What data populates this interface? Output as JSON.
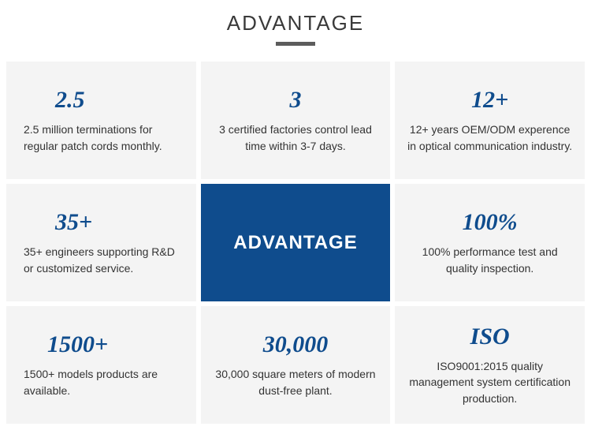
{
  "header": {
    "title": "ADVANTAGE",
    "title_color": "#3a3a3a",
    "underline_color": "#5c5c5c"
  },
  "grid": {
    "background_cell": "#f4f4f4",
    "center_background": "#0f4c8d",
    "stat_color": "#0f4c8d",
    "desc_color": "#333333",
    "stat_fontsize": 30,
    "desc_fontsize": 14,
    "cells": [
      {
        "stat": "2.5",
        "desc": "2.5 million terminations for regular patch cords monthly."
      },
      {
        "stat": "3",
        "desc": "3 certified factories control lead time within 3-7 days."
      },
      {
        "stat": "12+",
        "desc": "12+ years OEM/ODM experence in optical communication industry."
      },
      {
        "stat": "35+",
        "desc": "35+ engineers supporting R&D or customized service."
      },
      {
        "center": true,
        "label": "ADVANTAGE"
      },
      {
        "stat": "100%",
        "desc": "100% performance test and quality inspection."
      },
      {
        "stat": "1500+",
        "desc": "1500+ models products are available."
      },
      {
        "stat": "30,000",
        "desc": "30,000 square meters of modern dust-free plant."
      },
      {
        "stat": "ISO",
        "desc": "ISO9001:2015 quality management system certification production."
      }
    ]
  }
}
